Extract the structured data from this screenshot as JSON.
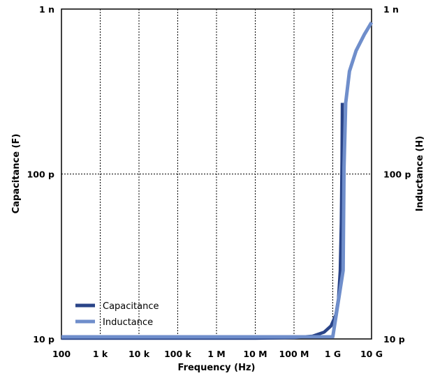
{
  "chart_data": {
    "type": "line",
    "xlabel": "Frequency (Hz)",
    "ylabel_left": "Capacitance (F)",
    "ylabel_right": "Inductance (H)",
    "x_scale": "log",
    "y_scale": "log",
    "xlim": [
      100,
      10000000000
    ],
    "ylim": [
      1e-11,
      1e-09
    ],
    "grid": true,
    "legend_position": "bottom-left",
    "x_ticks": [
      {
        "value": 100,
        "label": "100"
      },
      {
        "value": 1000,
        "label": "1 k"
      },
      {
        "value": 10000,
        "label": "10 k"
      },
      {
        "value": 100000,
        "label": "100 k"
      },
      {
        "value": 1000000,
        "label": "1 M"
      },
      {
        "value": 10000000,
        "label": "10 M"
      },
      {
        "value": 100000000,
        "label": "100 M"
      },
      {
        "value": 1000000000,
        "label": "1 G"
      },
      {
        "value": 10000000000,
        "label": "10 G"
      }
    ],
    "y_ticks_left": [
      {
        "value": 1e-09,
        "label": "1 n"
      },
      {
        "value": 1e-10,
        "label": "100 p"
      },
      {
        "value": 1e-11,
        "label": "10 p"
      }
    ],
    "y_ticks_right": [
      {
        "value": 1e-09,
        "label": "1 n"
      },
      {
        "value": 1e-10,
        "label": "100 p"
      },
      {
        "value": 1e-11,
        "label": "10 p"
      }
    ],
    "series": [
      {
        "name": "Capacitance",
        "color": "#2a4488",
        "points": [
          [
            100,
            1.01e-11
          ],
          [
            1000,
            1.01e-11
          ],
          [
            10000,
            1.01e-11
          ],
          [
            100000,
            1.01e-11
          ],
          [
            1000000,
            1.01e-11
          ],
          [
            10000000,
            1.01e-11
          ],
          [
            100000000,
            1.02e-11
          ],
          [
            300000000,
            1.04e-11
          ],
          [
            600000000,
            1.1e-11
          ],
          [
            900000000,
            1.2e-11
          ],
          [
            1200000000,
            1.4e-11
          ],
          [
            1400000000,
            1.75e-11
          ],
          [
            1550000000,
            2.6e-11
          ],
          [
            1650000000,
            5e-11
          ],
          [
            1720000000,
            1.2e-10
          ],
          [
            1760000000,
            2.7e-10
          ]
        ]
      },
      {
        "name": "Inductance",
        "color": "#6f8ecb",
        "points": [
          [
            100,
            1.03e-11
          ],
          [
            1000,
            1.03e-11
          ],
          [
            10000,
            1.03e-11
          ],
          [
            100000,
            1.03e-11
          ],
          [
            1000000,
            1.03e-11
          ],
          [
            10000000,
            1.03e-11
          ],
          [
            100000000,
            1.03e-11
          ],
          [
            1000000000,
            1.03e-11
          ],
          [
            1850000000,
            2.6e-11
          ],
          [
            1950000000,
            1.1e-10
          ],
          [
            2150000000,
            2.7e-10
          ],
          [
            2700000000,
            4.2e-10
          ],
          [
            4000000000,
            5.6e-10
          ],
          [
            6500000000,
            7e-10
          ],
          [
            10000000000,
            8.3e-10
          ]
        ]
      }
    ]
  }
}
